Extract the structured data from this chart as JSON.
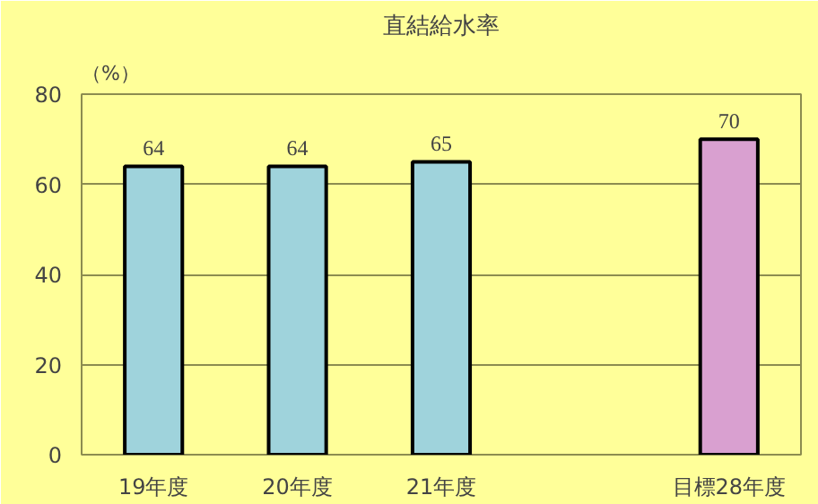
{
  "chart_data": {
    "type": "bar",
    "title": "直結給水率",
    "ylabel": "（%）",
    "categories": [
      "19年度",
      "20年度",
      "21年度",
      null,
      "目標28年度"
    ],
    "values": [
      64,
      64,
      65,
      null,
      70
    ],
    "colors": [
      "#9fd3dc",
      "#9fd3dc",
      "#9fd3dc",
      "#9fd3dc",
      "#d9a0d0"
    ],
    "ylim": [
      0,
      80
    ],
    "yticks": [
      0,
      20,
      40,
      60,
      80
    ],
    "grid": "y",
    "data_labels": true
  }
}
